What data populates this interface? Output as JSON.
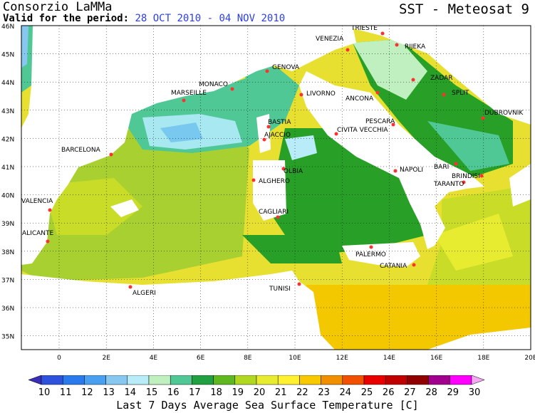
{
  "header": {
    "organization": "Consorzio LaMMa",
    "valid_label": "Valid for the period:",
    "period": "28 OCT 2010 - 04 NOV 2010",
    "product": "SST - Meteosat 9"
  },
  "map": {
    "lat_labels": [
      "46N",
      "45N",
      "44N",
      "43N",
      "42N",
      "41N",
      "40N",
      "39N",
      "38N",
      "37N",
      "36N",
      "35N"
    ],
    "lon_labels": [
      "0",
      "2E",
      "4E",
      "6E",
      "8E",
      "10E",
      "12E",
      "14E",
      "16E",
      "18E",
      "20E"
    ],
    "cities": [
      {
        "name": "TRIESTE"
      },
      {
        "name": "VENEZIA"
      },
      {
        "name": "RIJEKA"
      },
      {
        "name": "GENOVA"
      },
      {
        "name": "MONACO"
      },
      {
        "name": "MARSEILLE"
      },
      {
        "name": "LIVORNO"
      },
      {
        "name": "ANCONA"
      },
      {
        "name": "ZADAR"
      },
      {
        "name": "SPLIT"
      },
      {
        "name": "DUBROVNIK"
      },
      {
        "name": "BASTIA"
      },
      {
        "name": "AJACCIO"
      },
      {
        "name": "CIVITA VECCHIA"
      },
      {
        "name": "PESCARA"
      },
      {
        "name": "BARCELONA"
      },
      {
        "name": "OLBIA"
      },
      {
        "name": "ALGHERO"
      },
      {
        "name": "NAPOLI"
      },
      {
        "name": "BARI"
      },
      {
        "name": "BRINDISI"
      },
      {
        "name": "TARANTO"
      },
      {
        "name": "VALENCIA"
      },
      {
        "name": "CAGLIARI"
      },
      {
        "name": "ALICANTE"
      },
      {
        "name": "PALERMO"
      },
      {
        "name": "CATANIA"
      },
      {
        "name": "TUNISI"
      },
      {
        "name": "ALGERI"
      }
    ],
    "sea_color_scale": {
      "cold": "#c8f0f8",
      "cool": "#50c896",
      "mid": "#28a028",
      "warm": "#c8dc28",
      "hot": "#f0c000",
      "land": "#ffffff"
    }
  },
  "colorbar": {
    "labels": [
      "10",
      "11",
      "12",
      "13",
      "14",
      "15",
      "16",
      "17",
      "18",
      "19",
      "20",
      "21",
      "22",
      "23",
      "24",
      "25",
      "26",
      "27",
      "28",
      "29",
      "30"
    ],
    "colors": [
      "#3a2eb8",
      "#2e52dc",
      "#2a7aee",
      "#4aa0f0",
      "#88c8f0",
      "#b8ecf8",
      "#c0f0c0",
      "#50c896",
      "#20a040",
      "#60b820",
      "#b0d820",
      "#e8ec30",
      "#fff030",
      "#f8c800",
      "#f09000",
      "#f05000",
      "#e80000",
      "#c00000",
      "#900000",
      "#a0008c",
      "#ff00ff",
      "#f4a8f4"
    ],
    "title": "Last 7 Days Average Sea Surface Temperature [C]"
  }
}
